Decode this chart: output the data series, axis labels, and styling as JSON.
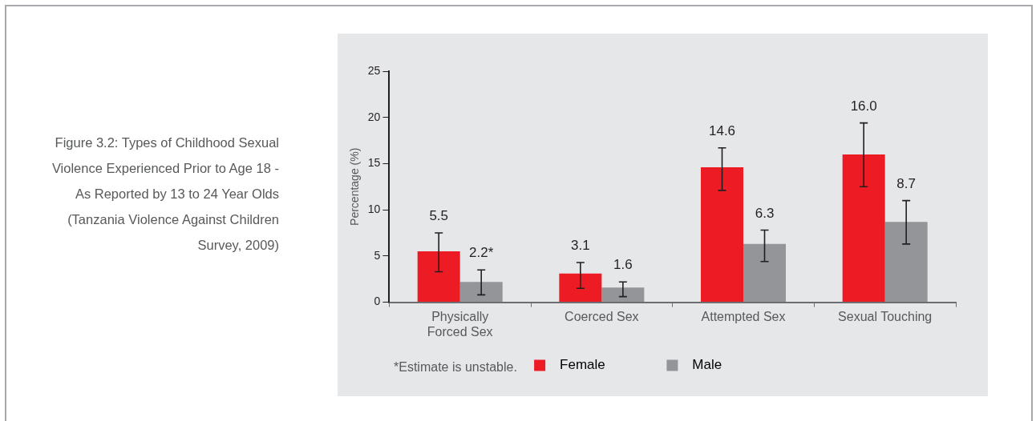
{
  "chart_data": {
    "type": "bar",
    "title": "Figure 3.2: Types of Childhood Sexual Violence Experienced Prior to Age 18 - As Reported by 13 to 24 Year Olds (Tanzania Violence Against Children Survey, 2009)",
    "ylabel": "Percentage (%)",
    "categories": [
      "Physically Forced Sex",
      "Coerced Sex",
      "Attempted Sex",
      "Sexual Touching"
    ],
    "series": [
      {
        "name": "Female",
        "color": "#ed1c24",
        "values": [
          5.5,
          3.1,
          14.6,
          16.0
        ],
        "errors": [
          [
            3.3,
            7.5
          ],
          [
            1.5,
            4.3
          ],
          [
            12.1,
            16.7
          ],
          [
            12.5,
            19.4
          ]
        ],
        "value_labels": [
          "5.5",
          "3.1",
          "14.6",
          "16.0"
        ]
      },
      {
        "name": "Male",
        "color": "#939598",
        "values": [
          2.2,
          1.6,
          6.3,
          8.7
        ],
        "errors": [
          [
            0.8,
            3.5
          ],
          [
            0.6,
            2.2
          ],
          [
            4.4,
            7.8
          ],
          [
            6.3,
            11.0
          ]
        ],
        "value_labels": [
          "2.2*",
          "1.6",
          "6.3",
          "8.7"
        ]
      }
    ],
    "ylim": [
      0,
      25
    ],
    "yticks": [
      0,
      5,
      10,
      15,
      20,
      25
    ],
    "grid": false,
    "legend": "bottom",
    "annotations": [
      "*Estimate is unstable."
    ]
  }
}
